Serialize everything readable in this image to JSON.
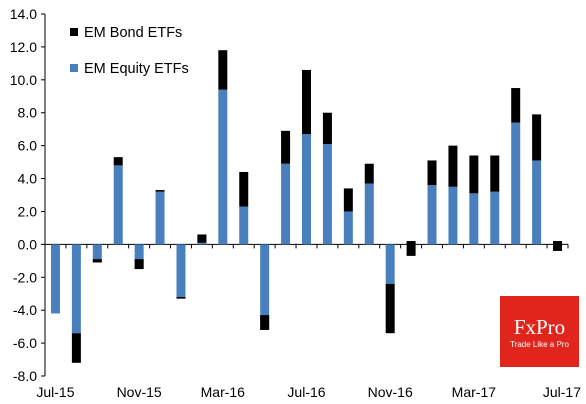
{
  "chart_data": {
    "type": "bar",
    "stacked": true,
    "title": "",
    "xlabel": "",
    "ylabel": "",
    "ylim": [
      -8,
      14
    ],
    "yticks": [
      -8,
      -6,
      -4,
      -2,
      0,
      2,
      4,
      6,
      8,
      10,
      12,
      14
    ],
    "ytick_labels": [
      "-8.0",
      "-6.0",
      "-4.0",
      "-2.0",
      "0.0",
      "2.0",
      "4.0",
      "6.0",
      "8.0",
      "10.0",
      "12.0",
      "14.0"
    ],
    "x_tick_labels": [
      {
        "index": 0,
        "label": "Jul-15"
      },
      {
        "index": 4,
        "label": "Nov-15"
      },
      {
        "index": 8,
        "label": "Mar-16"
      },
      {
        "index": 12,
        "label": "Jul-16"
      },
      {
        "index": 16,
        "label": "Nov-16"
      },
      {
        "index": 20,
        "label": "Mar-17"
      },
      {
        "index": 24,
        "label": "Jul-17"
      }
    ],
    "categories": [
      "Jul-15",
      "Aug-15",
      "Sep-15",
      "Oct-15",
      "Nov-15",
      "Dec-15",
      "Jan-16",
      "Feb-16",
      "Mar-16",
      "Apr-16",
      "May-16",
      "Jun-16",
      "Jul-16",
      "Aug-16",
      "Sep-16",
      "Oct-16",
      "Nov-16",
      "Dec-16",
      "Jan-17",
      "Feb-17",
      "Mar-17",
      "Apr-17",
      "May-17",
      "Jun-17",
      "Jul-17"
    ],
    "legend_position": "top-left",
    "series": [
      {
        "name": "EM Equity ETFs",
        "color": "#4a7fbe",
        "values": [
          -4.2,
          -5.4,
          -1.1,
          4.8,
          -1.5,
          3.2,
          -3.2,
          0.6,
          9.4,
          2.3,
          -5.2,
          4.9,
          6.7,
          6.1,
          2.0,
          3.7,
          -2.4,
          0.2,
          3.6,
          3.5,
          3.1,
          3.2,
          7.4,
          5.1,
          0.2
        ]
      },
      {
        "name": "EM Bond ETFs",
        "color": "#000000",
        "values": [
          0.0,
          -1.8,
          0.2,
          0.5,
          0.6,
          0.1,
          -0.1,
          -0.5,
          2.4,
          2.1,
          0.9,
          2.0,
          3.9,
          1.9,
          1.4,
          1.2,
          -3.0,
          -0.9,
          1.5,
          2.5,
          2.3,
          2.2,
          2.1,
          2.8,
          -0.6
        ]
      }
    ]
  },
  "logo": {
    "name": "FxPro",
    "tagline": "Trade Like a Pro",
    "color": "#e0261c"
  }
}
